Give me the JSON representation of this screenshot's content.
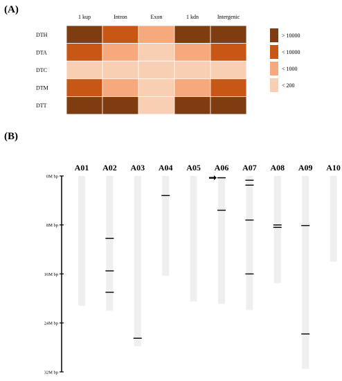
{
  "colors": {
    "level_4": "#7f3c10",
    "level_3": "#c85614",
    "level_2": "#f5a97c",
    "level_1": "#f9cfb3",
    "chrom_bar": "#efefef",
    "marker": "#000000"
  },
  "chart_data": [
    {
      "type": "heatmap",
      "panel_label": "(A)",
      "columns": [
        "1 kup",
        "Intron",
        "Exon",
        "1 kdn",
        "Intergenic"
      ],
      "rows": [
        "DTH",
        "DTA",
        "DTC",
        "DTM",
        "DTT"
      ],
      "levels": [
        [
          4,
          3,
          2,
          4,
          4
        ],
        [
          3,
          2,
          1,
          2,
          3
        ],
        [
          1,
          1,
          1,
          1,
          1
        ],
        [
          3,
          2,
          1,
          2,
          3
        ],
        [
          4,
          4,
          1,
          4,
          4
        ]
      ],
      "legend": [
        {
          "level": 4,
          "label": "> 10000"
        },
        {
          "level": 3,
          "label": "< 10000"
        },
        {
          "level": 2,
          "label": "< 1000"
        },
        {
          "level": 1,
          "label": "< 200"
        }
      ]
    },
    {
      "type": "chromosome-map",
      "panel_label": "(B)",
      "axis": {
        "ticks": [
          0,
          8,
          16,
          24,
          32
        ],
        "tick_labels": [
          "0M bp",
          "8M bp",
          "16M bp",
          "24M bp",
          "32M bp"
        ],
        "unit": "M bp",
        "range": [
          0,
          32
        ]
      },
      "chromosomes": [
        {
          "name": "A01",
          "length": 21.2,
          "markers": []
        },
        {
          "name": "A02",
          "length": 22.0,
          "markers": [
            10.2,
            15.5,
            19.0
          ]
        },
        {
          "name": "A03",
          "length": 27.8,
          "markers": [
            26.5
          ]
        },
        {
          "name": "A04",
          "length": 16.3,
          "markers": [
            3.2
          ]
        },
        {
          "name": "A05",
          "length": 20.5,
          "markers": []
        },
        {
          "name": "A06",
          "length": 20.9,
          "markers": [
            0.3,
            5.6
          ],
          "arrow_at": 0.3
        },
        {
          "name": "A07",
          "length": 21.9,
          "markers": [
            0.7,
            1.5,
            7.2,
            16.0
          ]
        },
        {
          "name": "A08",
          "length": 17.5,
          "markers": [
            8.0,
            8.4
          ]
        },
        {
          "name": "A09",
          "length": 31.5,
          "markers": [
            8.1,
            25.8
          ]
        },
        {
          "name": "A10",
          "length": 14.0,
          "markers": []
        }
      ]
    }
  ]
}
